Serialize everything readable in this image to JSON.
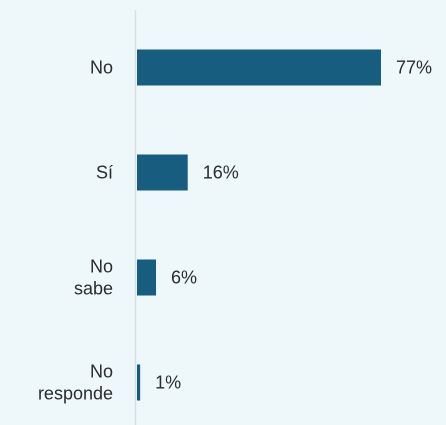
{
  "colors": {
    "background": "#eef8fb",
    "bar": "#175d80",
    "axis": "#d8dee2",
    "text": "#2b2b2b"
  },
  "chart_data": {
    "type": "bar",
    "orientation": "horizontal",
    "categories": [
      [
        "No"
      ],
      [
        "Sí"
      ],
      [
        "No",
        "sabe"
      ],
      [
        "No",
        "responde"
      ]
    ],
    "values": [
      77,
      16,
      6,
      1
    ],
    "value_labels": [
      "77%",
      "16%",
      "6%",
      "1%"
    ],
    "title": "",
    "xlabel": "",
    "ylabel": "",
    "xlim": [
      0,
      100
    ],
    "grid": false,
    "legend": "none"
  }
}
